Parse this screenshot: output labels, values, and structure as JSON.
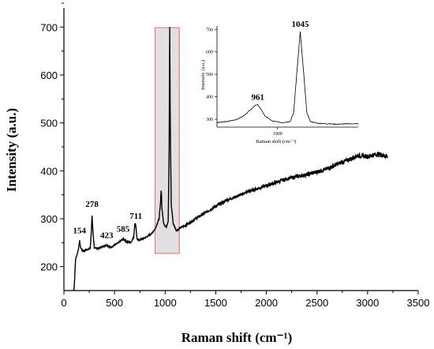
{
  "chart_data": [
    {
      "type": "line",
      "title": "",
      "xlabel": "Raman shift (cm⁻¹)",
      "ylabel": "Intensity (a.u.)",
      "xlim": [
        0,
        3500
      ],
      "ylim": [
        150,
        740
      ],
      "x_ticks": [
        "0",
        "500",
        "1000",
        "1500",
        "2000",
        "2500",
        "3000",
        "3500"
      ],
      "y_ticks": [
        "200",
        "300",
        "400",
        "500",
        "600",
        "700"
      ],
      "series": [
        {
          "x": [
            100,
            115,
            130,
            145,
            154,
            165,
            185,
            220,
            260,
            270,
            278,
            286,
            300,
            340,
            380,
            423,
            460,
            500,
            540,
            585,
            620,
            660,
            690,
            700,
            711,
            722,
            740,
            800,
            860,
            900,
            940,
            955,
            961,
            968,
            985,
            1010,
            1030,
            1040,
            1045,
            1050,
            1060,
            1080,
            1110,
            1130,
            1160,
            1200,
            1300,
            1400,
            1500,
            1600,
            1700,
            1800,
            1900,
            2000,
            2100,
            2200,
            2300,
            2400,
            2500,
            2600,
            2700,
            2800,
            2900,
            3000,
            3100,
            3200
          ],
          "y": [
            150,
            215,
            225,
            238,
            255,
            240,
            232,
            235,
            238,
            270,
            310,
            272,
            240,
            238,
            242,
            245,
            240,
            245,
            250,
            258,
            252,
            250,
            262,
            290,
            285,
            258,
            255,
            260,
            268,
            278,
            300,
            335,
            365,
            322,
            290,
            282,
            295,
            450,
            700,
            520,
            330,
            290,
            275,
            278,
            282,
            286,
            300,
            313,
            326,
            338,
            346,
            355,
            362,
            369,
            376,
            383,
            388,
            392,
            398,
            404,
            414,
            422,
            432,
            430,
            435,
            430
          ]
        }
      ],
      "peak_labels": [
        {
          "x": 154,
          "text": "154"
        },
        {
          "x": 278,
          "text": "278"
        },
        {
          "x": 423,
          "text": "423"
        },
        {
          "x": 585,
          "text": "585"
        },
        {
          "x": 711,
          "text": "711"
        }
      ],
      "highlight_range": [
        900,
        1140
      ]
    },
    {
      "type": "line",
      "title": "",
      "xlabel": "Raman shift (cm⁻¹)",
      "ylabel": "Intensity (a.u.)",
      "xlim": [
        880,
        1160
      ],
      "ylim": [
        265,
        715
      ],
      "x_ticks": [
        "1000"
      ],
      "y_ticks": [
        "300",
        "400",
        "500",
        "600",
        "700"
      ],
      "series": [
        {
          "x": [
            880,
            900,
            920,
            935,
            945,
            955,
            961,
            967,
            975,
            990,
            1010,
            1025,
            1032,
            1038,
            1045,
            1052,
            1058,
            1065,
            1080,
            1100,
            1120,
            1140,
            1160
          ],
          "y": [
            285,
            290,
            300,
            318,
            340,
            360,
            365,
            345,
            315,
            292,
            285,
            290,
            330,
            500,
            690,
            500,
            330,
            290,
            282,
            280,
            278,
            280,
            280
          ]
        }
      ],
      "peak_labels": [
        {
          "x": 961,
          "text": "961"
        },
        {
          "x": 1045,
          "text": "1045"
        }
      ]
    }
  ]
}
